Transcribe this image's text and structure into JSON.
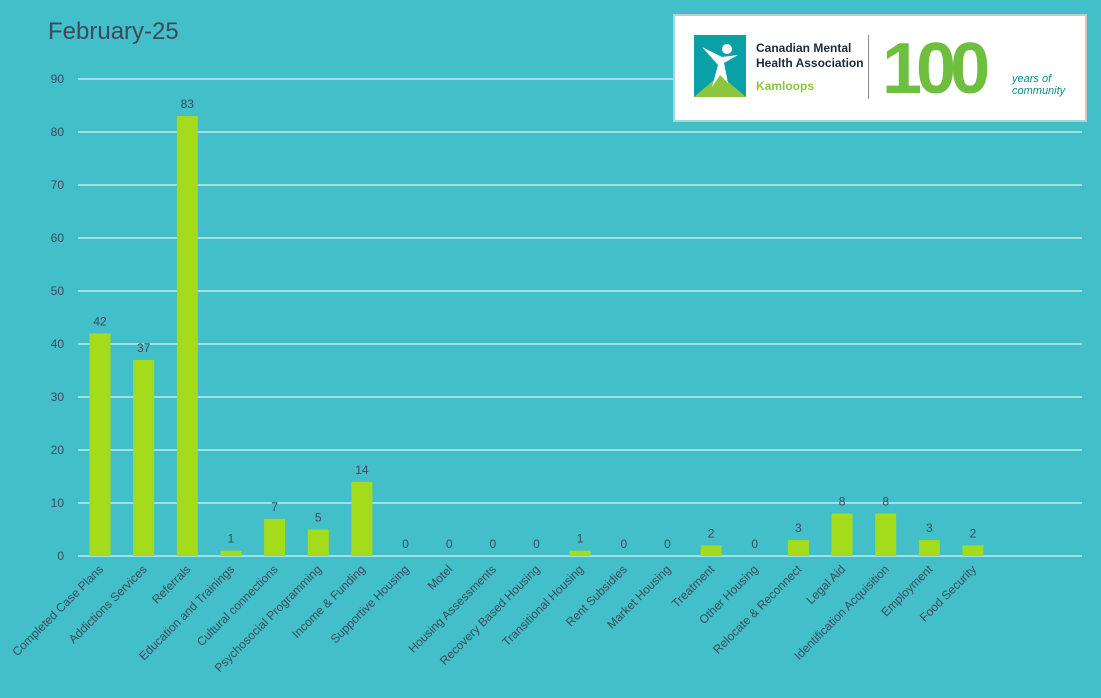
{
  "chart_data": {
    "type": "bar",
    "title": "February-25",
    "xlabel": "",
    "ylabel": "",
    "ylim": [
      0,
      90
    ],
    "yticks": [
      0,
      10,
      20,
      30,
      40,
      50,
      60,
      70,
      80,
      90
    ],
    "grid": true,
    "categories": [
      "Completed Case Plans",
      "Addictions Services",
      "Referrals",
      "Education and Trainings",
      "Cultural connections",
      "Psychosocial Programming",
      "Income & Funding",
      "Supportive Housing",
      "Motel",
      "Housing Assessments",
      "Recovery Based Housing",
      "Transitional Housing",
      "Rent Subsidies",
      "Market Housing",
      "Treatment",
      "Other Housing",
      "Relocate & Reconnect",
      "Legal Aid",
      "Identification Acquisition",
      "Employment",
      "Food Security"
    ],
    "values": [
      42,
      37,
      83,
      1,
      7,
      5,
      14,
      0,
      0,
      0,
      0,
      1,
      0,
      0,
      2,
      0,
      3,
      8,
      8,
      3,
      2
    ],
    "colors": {
      "bar": "#a4dc1c",
      "background": "#42bfc8",
      "grid": "#ffffff",
      "text": "#3d4a5c"
    }
  },
  "logo": {
    "org_name": "Canadian Mental Health Association",
    "city": "Kamloops",
    "anniversary_number": "100",
    "anniversary_text": "years of community",
    "icon": "cmha-figure-icon"
  }
}
